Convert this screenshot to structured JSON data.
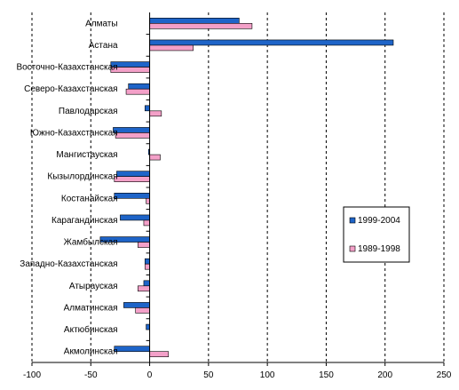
{
  "chart_data": {
    "type": "bar",
    "orientation": "horizontal",
    "categories": [
      "Алматы",
      "Астана",
      "Восточно-Казахстанская",
      "Северо-Казахстанская",
      "Павлодарская",
      "Южно-Казахстанская",
      "Мангистауская",
      "Кызылординская",
      "Костанайская",
      "Карагандинская",
      "Жамбылская",
      "Западно-Казахстанская",
      "Атырауская",
      "Алматинская",
      "Актюбинская",
      "Акмолинская"
    ],
    "series": [
      {
        "name": "1999-2004",
        "color": "#1e64c8",
        "values": [
          76,
          207,
          -33,
          -18,
          -4,
          -31,
          -1,
          -28,
          -30,
          -25,
          -42,
          -4,
          -5,
          -22,
          -3,
          -30
        ]
      },
      {
        "name": "1989-1998",
        "color": "#f3a0c8",
        "values": [
          87,
          37,
          -33,
          -20,
          10,
          -29,
          9,
          -30,
          -3,
          -5,
          -10,
          -4,
          -10,
          -12,
          0,
          16
        ]
      }
    ],
    "xlim": [
      -100,
      250
    ],
    "xticks": [
      -100,
      -50,
      0,
      50,
      100,
      150,
      200,
      250
    ],
    "grid": "vertical dashed",
    "legend_position": "right"
  }
}
